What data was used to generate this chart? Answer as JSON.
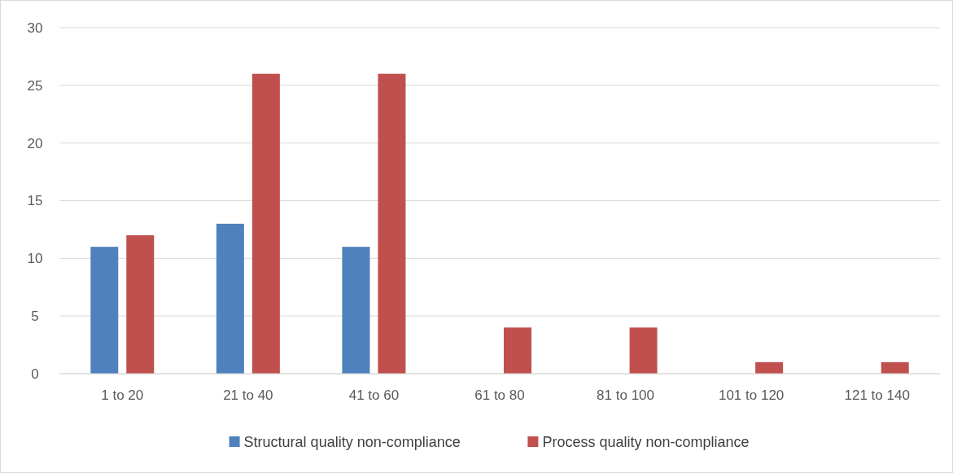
{
  "chart_data": {
    "type": "bar",
    "categories": [
      "1 to 20",
      "21 to 40",
      "41 to 60",
      "61 to 80",
      "81 to 100",
      "101 to 120",
      "121 to 140"
    ],
    "series": [
      {
        "name": "Structural quality non-compliance",
        "color": "#4f81bd",
        "values": [
          11,
          13,
          11,
          0,
          0,
          0,
          0
        ]
      },
      {
        "name": "Process quality non-compliance",
        "color": "#c0504d",
        "values": [
          12,
          26,
          26,
          4,
          4,
          1,
          1
        ]
      }
    ],
    "ylim": [
      0,
      30
    ],
    "yticks": [
      0,
      5,
      10,
      15,
      20,
      25,
      30
    ],
    "grid": "y",
    "legend": "bottom"
  }
}
